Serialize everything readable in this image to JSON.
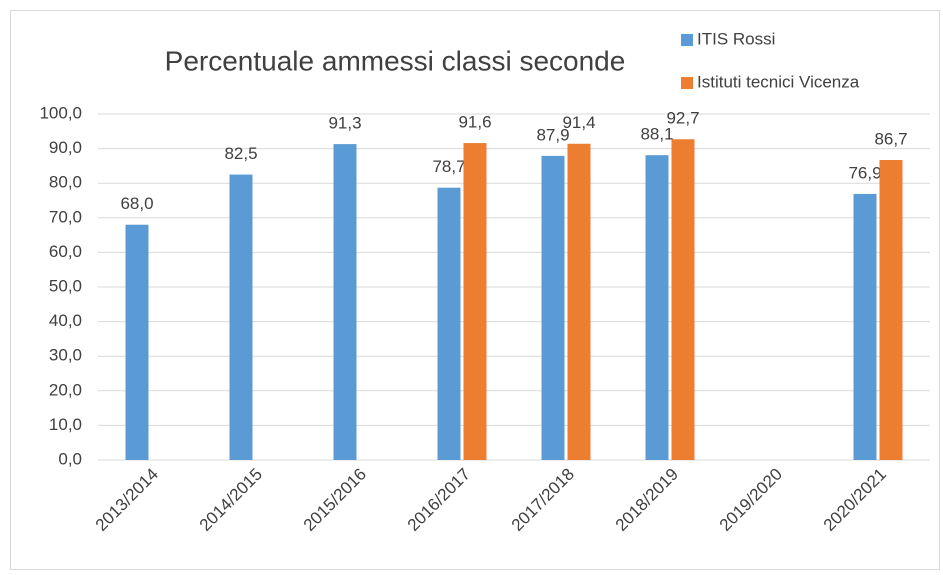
{
  "chart_data": {
    "type": "bar",
    "title": "Percentuale ammessi classi seconde",
    "categories": [
      "2013/2014",
      "2014/2015",
      "2015/2016",
      "2016/2017",
      "2017/2018",
      "2018/2019",
      "2019/2020",
      "2020/2021"
    ],
    "series": [
      {
        "name": "ITIS Rossi",
        "color": "#5b9bd5",
        "values": [
          68.0,
          82.5,
          91.3,
          78.7,
          87.9,
          88.1,
          null,
          76.9
        ],
        "value_labels": [
          "68,0",
          "82,5",
          "91,3",
          "78,7",
          "87,9",
          "88,1",
          null,
          "76,9"
        ]
      },
      {
        "name": "Istituti tecnici Vicenza",
        "color": "#ed7d31",
        "values": [
          null,
          null,
          null,
          91.6,
          91.4,
          92.7,
          null,
          86.7
        ],
        "value_labels": [
          null,
          null,
          null,
          "91,6",
          "91,4",
          "92,7",
          null,
          "86,7"
        ]
      }
    ],
    "ylim": [
      0,
      100
    ],
    "yticks": [
      {
        "value": 0,
        "label": "0,0"
      },
      {
        "value": 10,
        "label": "10,0"
      },
      {
        "value": 20,
        "label": "20,0"
      },
      {
        "value": 30,
        "label": "30,0"
      },
      {
        "value": 40,
        "label": "40,0"
      },
      {
        "value": 50,
        "label": "50,0"
      },
      {
        "value": 60,
        "label": "60,0"
      },
      {
        "value": 70,
        "label": "70,0"
      },
      {
        "value": 80,
        "label": "80,0"
      },
      {
        "value": 90,
        "label": "90,0"
      },
      {
        "value": 100,
        "label": "100,0"
      }
    ],
    "grid": true,
    "legend": "top-right"
  }
}
